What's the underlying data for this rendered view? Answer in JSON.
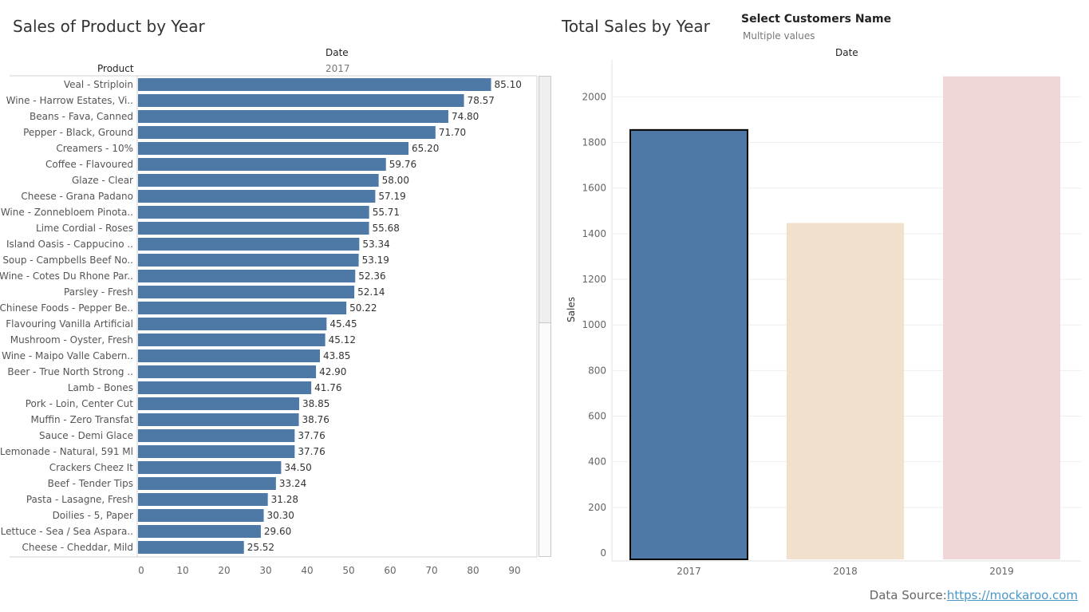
{
  "left": {
    "title": "Sales of Product by Year",
    "column_header": "Date",
    "row_header": "Product",
    "year": "2017"
  },
  "right": {
    "title": "Total Sales by Year",
    "filter_title": "Select Customers Name",
    "filter_value": "Multiple values",
    "column_header": "Date"
  },
  "footer": {
    "label": "Data Source:",
    "link": "https://mockaroo.com"
  },
  "colors": {
    "bar": "#4e79a7",
    "bar_2018": "#f1e0cc",
    "bar_2019": "#f0d6d6"
  },
  "chart_data": [
    {
      "type": "bar",
      "orientation": "horizontal",
      "title": "Sales of Product by Year",
      "categories": [
        "Veal - Striploin",
        "Wine - Harrow Estates, Vi..",
        "Beans - Fava, Canned",
        "Pepper - Black, Ground",
        "Creamers - 10%",
        "Coffee - Flavoured",
        "Glaze - Clear",
        "Cheese - Grana Padano",
        "Wine - Zonnebloem Pinota..",
        "Lime Cordial - Roses",
        "Island Oasis - Cappucino ..",
        "Soup - Campbells Beef No..",
        "Wine - Cotes Du Rhone Par..",
        "Parsley - Fresh",
        "Chinese Foods - Pepper Be..",
        "Flavouring Vanilla Artificial",
        "Mushroom - Oyster, Fresh",
        "Wine - Maipo Valle Cabern..",
        "Beer - True North Strong ..",
        "Lamb - Bones",
        "Pork - Loin, Center Cut",
        "Muffin - Zero Transfat",
        "Sauce - Demi Glace",
        "Lemonade - Natural, 591 Ml",
        "Crackers Cheez It",
        "Beef - Tender Tips",
        "Pasta - Lasagne, Fresh",
        "Doilies - 5, Paper",
        "Lettuce - Sea / Sea Aspara..",
        "Cheese - Cheddar, Mild"
      ],
      "values": [
        85.1,
        78.57,
        74.8,
        71.7,
        65.2,
        59.76,
        58.0,
        57.19,
        55.71,
        55.68,
        53.34,
        53.19,
        52.36,
        52.14,
        50.22,
        45.45,
        45.12,
        43.85,
        42.9,
        41.76,
        38.85,
        38.76,
        37.76,
        37.76,
        34.5,
        33.24,
        31.28,
        30.3,
        29.6,
        25.52
      ],
      "value_labels": [
        "85.10",
        "78.57",
        "74.80",
        "71.70",
        "65.20",
        "59.76",
        "58.00",
        "57.19",
        "55.71",
        "55.68",
        "53.34",
        "53.19",
        "52.36",
        "52.14",
        "50.22",
        "45.45",
        "45.12",
        "43.85",
        "42.90",
        "41.76",
        "38.85",
        "38.76",
        "37.76",
        "37.76",
        "34.50",
        "33.24",
        "31.28",
        "30.30",
        "29.60",
        "25.52"
      ],
      "xlim": [
        0,
        100
      ],
      "xticks": [
        0,
        10,
        20,
        30,
        40,
        50,
        60,
        70,
        80,
        90
      ],
      "grid": false
    },
    {
      "type": "bar",
      "orientation": "vertical",
      "title": "Total Sales by Year",
      "categories": [
        "2017",
        "2018",
        "2019"
      ],
      "values": [
        1855,
        1447,
        2090
      ],
      "ylabel": "Sales",
      "ylim": [
        0,
        2200
      ],
      "yticks": [
        0,
        200,
        400,
        600,
        800,
        1000,
        1200,
        1400,
        1600,
        1800,
        2000
      ],
      "grid": true,
      "selected": "2017"
    }
  ]
}
